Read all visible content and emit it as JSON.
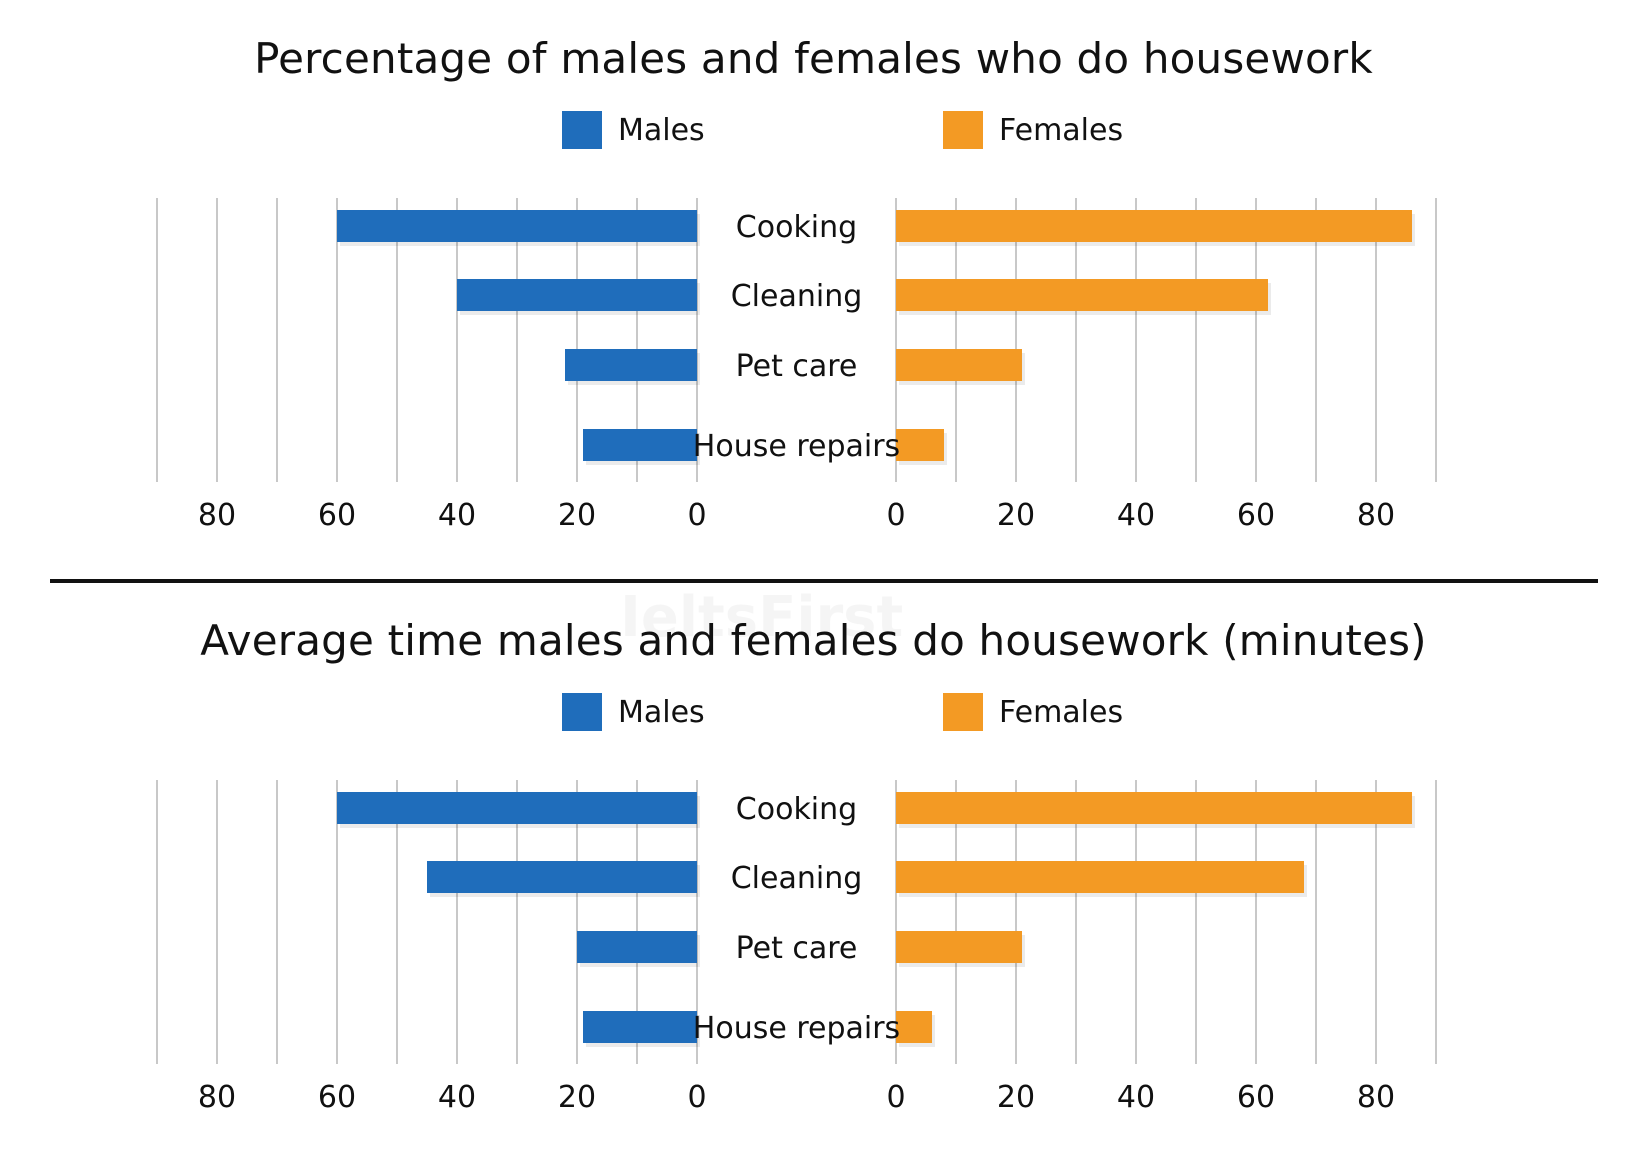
{
  "chart_data": [
    {
      "type": "bar",
      "title": "Percentage of males and females who do housework",
      "categories": [
        "Cooking",
        "Cleaning",
        "Pet care",
        "House repairs"
      ],
      "series": [
        {
          "name": "Males",
          "color": "#1f6dbb",
          "values": [
            60,
            40,
            22,
            19
          ]
        },
        {
          "name": "Females",
          "color": "#f39a24",
          "values": [
            86,
            62,
            21,
            8
          ]
        }
      ],
      "left_axis": {
        "ticks": [
          "80",
          "60",
          "40",
          "20",
          "0"
        ],
        "range": [
          0,
          90
        ],
        "direction": "reversed"
      },
      "right_axis": {
        "ticks": [
          "0",
          "20",
          "40",
          "60",
          "80"
        ],
        "range": [
          0,
          90
        ]
      },
      "grid": true,
      "legend": "top-center"
    },
    {
      "type": "bar",
      "title": "Average time males and females do housework (minutes)",
      "categories": [
        "Cooking",
        "Cleaning",
        "Pet care",
        "House repairs"
      ],
      "series": [
        {
          "name": "Males",
          "color": "#1f6dbb",
          "values": [
            60,
            45,
            20,
            19
          ]
        },
        {
          "name": "Females",
          "color": "#f39a24",
          "values": [
            86,
            68,
            21,
            6
          ]
        }
      ],
      "left_axis": {
        "ticks": [
          "80",
          "60",
          "40",
          "20",
          "0"
        ],
        "range": [
          0,
          90
        ],
        "direction": "reversed"
      },
      "right_axis": {
        "ticks": [
          "0",
          "20",
          "40",
          "60",
          "80"
        ],
        "range": [
          0,
          90
        ]
      },
      "grid": true,
      "legend": "top-center"
    }
  ],
  "watermark": "IeltsFirst"
}
